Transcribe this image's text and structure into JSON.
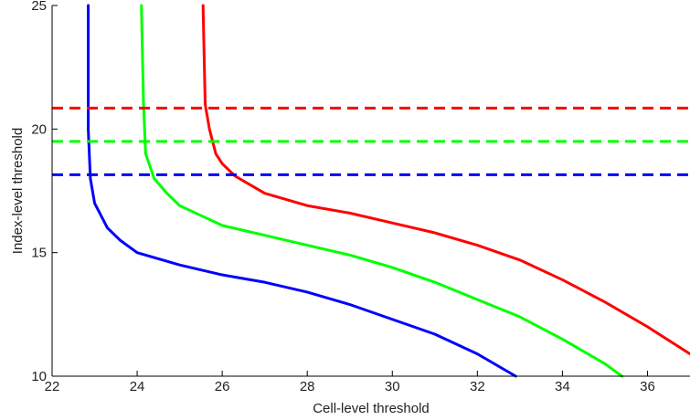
{
  "chart_data": {
    "type": "line",
    "title": "",
    "xlabel": "Cell-level threshold",
    "ylabel": "Index-level threshold",
    "xlim": [
      22,
      37
    ],
    "ylim": [
      10,
      25
    ],
    "xticks": [
      22,
      24,
      26,
      28,
      30,
      32,
      34,
      36
    ],
    "yticks": [
      10,
      15,
      20,
      25
    ],
    "grid": false,
    "legend": "none",
    "series": [
      {
        "color": "#0000ff",
        "style": "solid",
        "points": [
          [
            22.85,
            25
          ],
          [
            22.85,
            20
          ],
          [
            22.9,
            18
          ],
          [
            22.95,
            17.5
          ],
          [
            23.0,
            17.0
          ],
          [
            23.3,
            16.0
          ],
          [
            23.6,
            15.5
          ],
          [
            24.0,
            15.0
          ],
          [
            25.0,
            14.5
          ],
          [
            26.0,
            14.1
          ],
          [
            27.0,
            13.8
          ],
          [
            28.0,
            13.4
          ],
          [
            29.0,
            12.9
          ],
          [
            30.0,
            12.3
          ],
          [
            31.0,
            11.7
          ],
          [
            32.0,
            10.9
          ],
          [
            32.9,
            10.0
          ]
        ]
      },
      {
        "color": "#00ff00",
        "style": "solid",
        "points": [
          [
            24.1,
            25
          ],
          [
            24.15,
            21
          ],
          [
            24.2,
            19.0
          ],
          [
            24.3,
            18.5
          ],
          [
            24.4,
            18.0
          ],
          [
            24.7,
            17.4
          ],
          [
            25.0,
            16.9
          ],
          [
            25.5,
            16.5
          ],
          [
            26.0,
            16.1
          ],
          [
            27.0,
            15.7
          ],
          [
            28.0,
            15.3
          ],
          [
            29.0,
            14.9
          ],
          [
            30.0,
            14.4
          ],
          [
            31.0,
            13.8
          ],
          [
            32.0,
            13.1
          ],
          [
            33.0,
            12.4
          ],
          [
            34.0,
            11.5
          ],
          [
            35.0,
            10.5
          ],
          [
            35.4,
            10.0
          ]
        ]
      },
      {
        "color": "#ff0000",
        "style": "solid",
        "points": [
          [
            25.55,
            25
          ],
          [
            25.6,
            21
          ],
          [
            25.7,
            20.0
          ],
          [
            25.85,
            19.0
          ],
          [
            26.0,
            18.6
          ],
          [
            26.3,
            18.1
          ],
          [
            26.7,
            17.7
          ],
          [
            27.0,
            17.4
          ],
          [
            28.0,
            16.9
          ],
          [
            29.0,
            16.6
          ],
          [
            30.0,
            16.2
          ],
          [
            31.0,
            15.8
          ],
          [
            32.0,
            15.3
          ],
          [
            33.0,
            14.7
          ],
          [
            34.0,
            13.9
          ],
          [
            35.0,
            13.0
          ],
          [
            36.0,
            12.0
          ],
          [
            37.0,
            10.9
          ]
        ]
      },
      {
        "color": "#ff0000",
        "style": "dashed",
        "points": [
          [
            22,
            20.85
          ],
          [
            37,
            20.85
          ]
        ]
      },
      {
        "color": "#00ff00",
        "style": "dashed",
        "points": [
          [
            22,
            19.5
          ],
          [
            37,
            19.5
          ]
        ]
      },
      {
        "color": "#0000ff",
        "style": "dashed",
        "points": [
          [
            22,
            18.15
          ],
          [
            37,
            18.15
          ]
        ]
      }
    ]
  }
}
